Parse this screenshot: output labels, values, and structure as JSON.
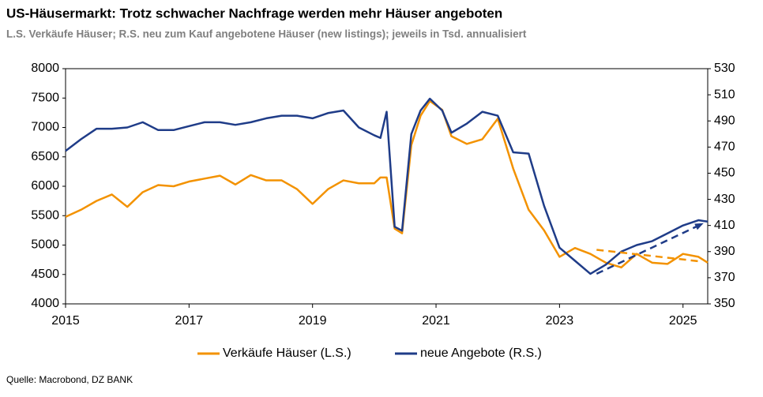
{
  "chart_data": {
    "type": "line",
    "title": "US-Häusermarkt: Trotz schwacher Nachfrage werden mehr Häuser angeboten",
    "subtitle": "L.S. Verkäufe Häuser; R.S. neu zum Kauf angebotene Häuser (new listings); jeweils in Tsd. annualisiert",
    "source": "Quelle: Macrobond, DZ BANK",
    "x": [
      2015.0,
      2015.25,
      2015.5,
      2015.75,
      2016.0,
      2016.25,
      2016.5,
      2016.75,
      2017.0,
      2017.25,
      2017.5,
      2017.75,
      2018.0,
      2018.25,
      2018.5,
      2018.75,
      2019.0,
      2019.25,
      2019.5,
      2019.75,
      2020.0,
      2020.1,
      2020.2,
      2020.33,
      2020.45,
      2020.6,
      2020.75,
      2020.9,
      2021.1,
      2021.25,
      2021.5,
      2021.75,
      2022.0,
      2022.25,
      2022.5,
      2022.75,
      2023.0,
      2023.25,
      2023.5,
      2023.75,
      2024.0,
      2024.25,
      2024.5,
      2024.75,
      2025.0,
      2025.25,
      2025.4
    ],
    "series": [
      {
        "name": "Verkäufe Häuser (L.S.)",
        "color": "#f39200",
        "values": [
          5480,
          5600,
          5750,
          5860,
          5650,
          5900,
          6020,
          6000,
          6080,
          6130,
          6180,
          6030,
          6190,
          6100,
          6100,
          5950,
          5700,
          5950,
          6100,
          6050,
          6050,
          6150,
          6150,
          5280,
          5200,
          6700,
          7200,
          7450,
          7300,
          6850,
          6720,
          6800,
          7150,
          6300,
          5600,
          5250,
          4800,
          4950,
          4850,
          4700,
          4620,
          4850,
          4700,
          4680,
          4850,
          4800,
          4700
        ]
      },
      {
        "name": "neue Angebote (R.S.)",
        "color": "#1f3c88",
        "axis": "y2",
        "values": [
          467,
          476,
          484,
          484,
          485,
          489,
          483,
          483,
          486,
          489,
          489,
          487,
          489,
          492,
          494,
          494,
          492,
          496,
          498,
          485,
          479,
          477,
          497,
          409,
          406,
          480,
          498,
          507,
          498,
          481,
          488,
          497,
          494,
          466,
          465,
          425,
          393,
          383,
          373,
          380,
          390,
          395,
          398,
          404,
          410,
          414,
          413
        ]
      }
    ],
    "trends": [
      {
        "color": "#f39200",
        "x": [
          2023.6,
          2025.3
        ],
        "values": [
          4920,
          4720
        ]
      },
      {
        "color": "#1f3c88",
        "axis": "y2",
        "x": [
          2023.6,
          2025.3
        ],
        "values": [
          373,
          411
        ]
      }
    ],
    "xlim": [
      2015,
      2025.4
    ],
    "xticks": [
      2015,
      2017,
      2019,
      2021,
      2023,
      2025
    ],
    "ylim": [
      4000,
      8000
    ],
    "yticks": [
      4000,
      4500,
      5000,
      5500,
      6000,
      6500,
      7000,
      7500,
      8000
    ],
    "y2lim": [
      350,
      530
    ],
    "y2ticks": [
      350,
      370,
      390,
      410,
      430,
      450,
      470,
      490,
      510,
      530
    ]
  }
}
